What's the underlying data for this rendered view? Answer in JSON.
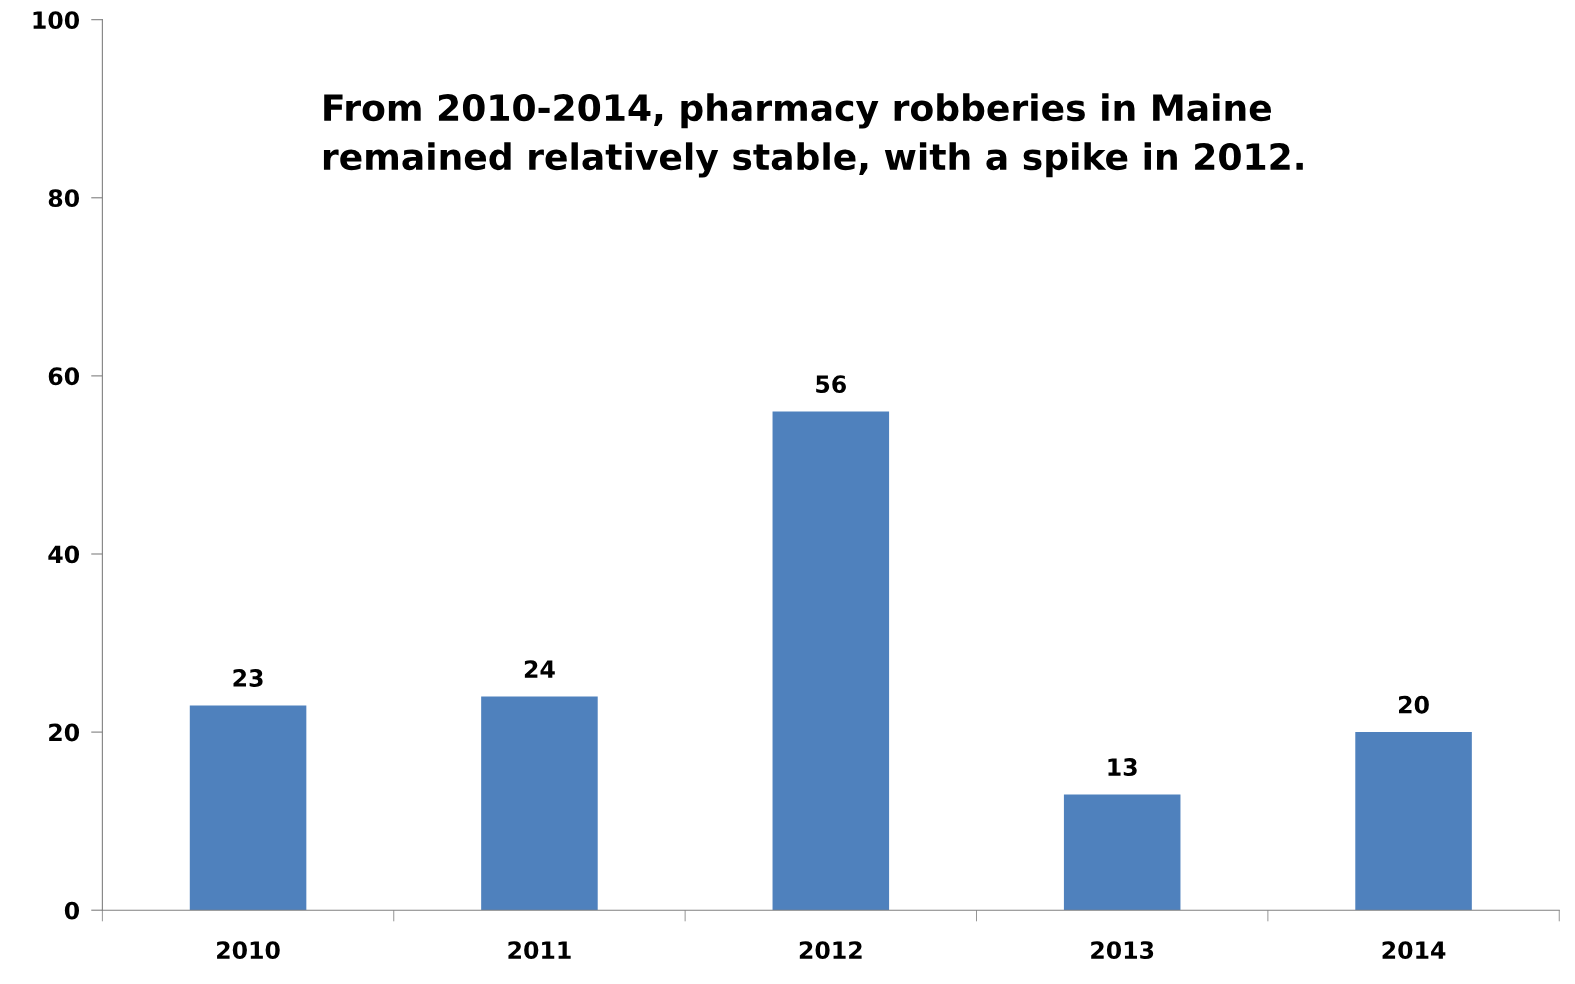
{
  "chart_data": {
    "type": "bar",
    "title": "From 2010-2014, pharmacy robberies in Maine\nremained relatively stable, with a spike in 2012.",
    "categories": [
      "2010",
      "2011",
      "2012",
      "2013",
      "2014"
    ],
    "values": [
      23,
      24,
      56,
      13,
      20
    ],
    "color": "#4f81bd",
    "ylim": [
      0,
      100
    ],
    "yticks": [
      0,
      20,
      40,
      60,
      80,
      100
    ],
    "grid": false,
    "data_labels": true
  }
}
